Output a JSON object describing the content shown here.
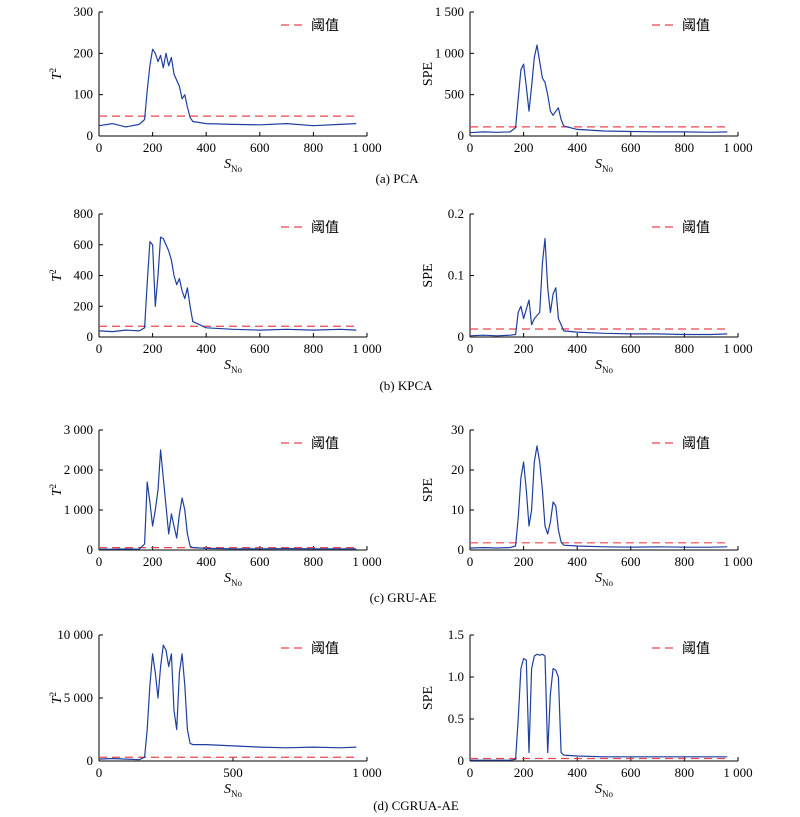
{
  "legend_label": "阈值",
  "x_label_main": "S",
  "x_label_sub": "No",
  "colors": {
    "series": "#1f3fa0",
    "threshold": "#e8474f"
  },
  "captions": [
    "(a) PCA",
    "(b) KPCA",
    "(c) GRU-AE",
    "(d) CGRUA-AE"
  ],
  "chart_data": [
    {
      "id": "pca-t2",
      "type": "line",
      "ylabel": "T",
      "ylabel_sup": "2",
      "xlim": [
        0,
        1000
      ],
      "ylim": [
        0,
        300
      ],
      "xticks": [
        0,
        200,
        400,
        600,
        800,
        1000
      ],
      "xtick_labels": [
        "0",
        "200",
        "400",
        "600",
        "800",
        "1 000"
      ],
      "yticks": [
        0,
        100,
        200,
        300
      ],
      "ytick_labels": [
        "0",
        "100",
        "200",
        "300"
      ],
      "threshold": 48,
      "legend": "top-right",
      "series": [
        {
          "x": [
            0,
            50,
            100,
            150,
            170,
            180,
            190,
            200,
            210,
            220,
            230,
            240,
            250,
            260,
            270,
            280,
            290,
            300,
            310,
            320,
            330,
            340,
            350,
            400,
            500,
            600,
            700,
            800,
            900,
            960
          ],
          "y": [
            25,
            30,
            22,
            28,
            40,
            110,
            170,
            210,
            200,
            180,
            195,
            165,
            200,
            170,
            190,
            150,
            135,
            120,
            90,
            100,
            70,
            45,
            35,
            30,
            28,
            27,
            30,
            25,
            28,
            30
          ]
        }
      ]
    },
    {
      "id": "pca-spe",
      "type": "line",
      "ylabel": "SPE",
      "ylabel_sup": "",
      "xlim": [
        0,
        1000
      ],
      "ylim": [
        0,
        1500
      ],
      "xticks": [
        0,
        200,
        400,
        600,
        800,
        1000
      ],
      "xtick_labels": [
        "0",
        "200",
        "400",
        "600",
        "800",
        "1 000"
      ],
      "yticks": [
        0,
        500,
        1000,
        1500
      ],
      "ytick_labels": [
        "0",
        "500",
        "1 000",
        "1 500"
      ],
      "threshold": 110,
      "legend": "top-right",
      "series": [
        {
          "x": [
            0,
            50,
            100,
            150,
            170,
            180,
            190,
            200,
            210,
            220,
            230,
            240,
            250,
            260,
            270,
            280,
            290,
            300,
            310,
            320,
            330,
            340,
            350,
            400,
            500,
            600,
            700,
            800,
            900,
            960
          ],
          "y": [
            40,
            50,
            45,
            50,
            100,
            450,
            800,
            870,
            600,
            300,
            600,
            950,
            1100,
            900,
            700,
            650,
            500,
            300,
            250,
            300,
            340,
            200,
            120,
            80,
            60,
            55,
            50,
            50,
            45,
            50
          ]
        }
      ]
    },
    {
      "id": "kpca-t2",
      "type": "line",
      "ylabel": "T",
      "ylabel_sup": "2",
      "xlim": [
        0,
        1000
      ],
      "ylim": [
        0,
        800
      ],
      "xticks": [
        0,
        200,
        400,
        600,
        800,
        1000
      ],
      "xtick_labels": [
        "0",
        "200",
        "400",
        "600",
        "800",
        "1 000"
      ],
      "yticks": [
        0,
        200,
        400,
        600,
        800
      ],
      "ytick_labels": [
        "0",
        "200",
        "400",
        "600",
        "800"
      ],
      "threshold": 70,
      "legend": "top-right",
      "series": [
        {
          "x": [
            0,
            50,
            100,
            150,
            170,
            180,
            190,
            200,
            210,
            220,
            230,
            240,
            250,
            260,
            270,
            280,
            290,
            300,
            310,
            320,
            330,
            340,
            350,
            400,
            500,
            600,
            700,
            800,
            900,
            960
          ],
          "y": [
            40,
            35,
            45,
            40,
            60,
            350,
            620,
            600,
            200,
            400,
            650,
            640,
            600,
            560,
            500,
            400,
            340,
            380,
            300,
            250,
            320,
            200,
            100,
            60,
            50,
            45,
            50,
            45,
            50,
            45
          ]
        }
      ]
    },
    {
      "id": "kpca-spe",
      "type": "line",
      "ylabel": "SPE",
      "ylabel_sup": "",
      "xlim": [
        0,
        1000
      ],
      "ylim": [
        0,
        0.2
      ],
      "xticks": [
        0,
        200,
        400,
        600,
        800,
        1000
      ],
      "xtick_labels": [
        "0",
        "200",
        "400",
        "600",
        "800",
        "1 000"
      ],
      "yticks": [
        0,
        0.1,
        0.2
      ],
      "ytick_labels": [
        "0",
        "0.1",
        "0.2"
      ],
      "threshold": 0.013,
      "legend": "top-right",
      "series": [
        {
          "x": [
            0,
            50,
            100,
            150,
            170,
            180,
            190,
            200,
            210,
            220,
            230,
            240,
            250,
            260,
            270,
            280,
            290,
            300,
            310,
            320,
            330,
            340,
            350,
            400,
            500,
            600,
            700,
            800,
            900,
            960
          ],
          "y": [
            0.002,
            0.003,
            0.002,
            0.003,
            0.004,
            0.04,
            0.05,
            0.03,
            0.045,
            0.06,
            0.02,
            0.03,
            0.035,
            0.04,
            0.12,
            0.16,
            0.08,
            0.04,
            0.07,
            0.08,
            0.03,
            0.02,
            0.01,
            0.008,
            0.006,
            0.005,
            0.005,
            0.004,
            0.004,
            0.005
          ]
        }
      ]
    },
    {
      "id": "gru-t2",
      "type": "line",
      "ylabel": "T",
      "ylabel_sup": "2",
      "xlim": [
        0,
        1000
      ],
      "ylim": [
        0,
        3000
      ],
      "xticks": [
        0,
        200,
        400,
        600,
        800,
        1000
      ],
      "xtick_labels": [
        "0",
        "200",
        "400",
        "600",
        "800",
        "1 000"
      ],
      "yticks": [
        0,
        1000,
        2000,
        3000
      ],
      "ytick_labels": [
        "0",
        "1 000",
        "2 000",
        "3 000"
      ],
      "threshold": 60,
      "legend": "top-right",
      "series": [
        {
          "x": [
            0,
            50,
            100,
            150,
            170,
            180,
            190,
            200,
            210,
            220,
            230,
            240,
            250,
            260,
            270,
            280,
            290,
            300,
            310,
            320,
            330,
            340,
            350,
            400,
            500,
            600,
            700,
            800,
            900,
            960
          ],
          "y": [
            20,
            20,
            25,
            20,
            150,
            1700,
            1200,
            600,
            1000,
            1500,
            2500,
            1800,
            1100,
            400,
            900,
            600,
            300,
            900,
            1300,
            1000,
            400,
            100,
            60,
            40,
            30,
            30,
            35,
            30,
            30,
            30
          ]
        }
      ]
    },
    {
      "id": "gru-spe",
      "type": "line",
      "ylabel": "SPE",
      "ylabel_sup": "",
      "xlim": [
        0,
        1000
      ],
      "ylim": [
        0,
        30
      ],
      "xticks": [
        0,
        200,
        400,
        600,
        800,
        1000
      ],
      "xtick_labels": [
        "0",
        "200",
        "400",
        "600",
        "800",
        "1 000"
      ],
      "yticks": [
        0,
        10,
        20,
        30
      ],
      "ytick_labels": [
        "0",
        "10",
        "20",
        "30"
      ],
      "threshold": 1.8,
      "legend": "top-right",
      "series": [
        {
          "x": [
            0,
            50,
            100,
            150,
            170,
            180,
            190,
            200,
            210,
            220,
            230,
            240,
            250,
            260,
            270,
            280,
            290,
            300,
            310,
            320,
            330,
            340,
            350,
            400,
            500,
            600,
            700,
            800,
            900,
            960
          ],
          "y": [
            0.5,
            0.6,
            0.5,
            0.6,
            1.0,
            8,
            18,
            22,
            15,
            6,
            10,
            22,
            26,
            22,
            15,
            6,
            4,
            7,
            12,
            11,
            5,
            2,
            1.2,
            1,
            0.8,
            0.7,
            0.8,
            0.7,
            0.7,
            0.8
          ]
        }
      ]
    },
    {
      "id": "cgrua-t2",
      "type": "line",
      "ylabel": "T",
      "ylabel_sup": "2",
      "xlim": [
        0,
        1000
      ],
      "ylim": [
        0,
        10000
      ],
      "xticks": [
        0,
        500,
        1000
      ],
      "xtick_labels": [
        "0",
        "500",
        "1 000"
      ],
      "yticks": [
        0,
        5000,
        10000
      ],
      "ytick_labels": [
        "0",
        "5 000",
        "10 000"
      ],
      "threshold": 300,
      "legend": "top-right",
      "series": [
        {
          "x": [
            0,
            50,
            100,
            150,
            170,
            180,
            190,
            200,
            210,
            220,
            230,
            240,
            250,
            260,
            270,
            280,
            290,
            300,
            310,
            320,
            330,
            340,
            350,
            400,
            500,
            600,
            700,
            800,
            900,
            960
          ],
          "y": [
            150,
            200,
            150,
            100,
            300,
            2500,
            6000,
            8500,
            7000,
            5000,
            7500,
            9200,
            8800,
            7500,
            8500,
            4000,
            2500,
            7000,
            8500,
            6000,
            2500,
            1400,
            1300,
            1300,
            1200,
            1100,
            1050,
            1100,
            1050,
            1100
          ]
        }
      ]
    },
    {
      "id": "cgrua-spe",
      "type": "line",
      "ylabel": "SPE",
      "ylabel_sup": "",
      "xlim": [
        0,
        1000
      ],
      "ylim": [
        0,
        1.5
      ],
      "xticks": [
        0,
        200,
        400,
        600,
        800,
        1000
      ],
      "xtick_labels": [
        "0",
        "200",
        "400",
        "600",
        "800",
        "1 000"
      ],
      "yticks": [
        0,
        0.5,
        1.0,
        1.5
      ],
      "ytick_labels": [
        "0",
        "0.5",
        "1.0",
        "1.5"
      ],
      "threshold": 0.03,
      "legend": "top-right",
      "series": [
        {
          "x": [
            0,
            50,
            100,
            150,
            170,
            180,
            190,
            200,
            210,
            220,
            230,
            240,
            250,
            260,
            270,
            280,
            290,
            300,
            310,
            320,
            330,
            340,
            350,
            400,
            500,
            600,
            700,
            800,
            900,
            960
          ],
          "y": [
            0.01,
            0.01,
            0.01,
            0.01,
            0.02,
            0.5,
            1.1,
            1.22,
            1.2,
            0.1,
            1.1,
            1.25,
            1.27,
            1.26,
            1.27,
            1.25,
            0.1,
            0.8,
            1.1,
            1.08,
            1.0,
            0.1,
            0.07,
            0.06,
            0.05,
            0.05,
            0.05,
            0.05,
            0.05,
            0.05
          ]
        }
      ]
    }
  ]
}
